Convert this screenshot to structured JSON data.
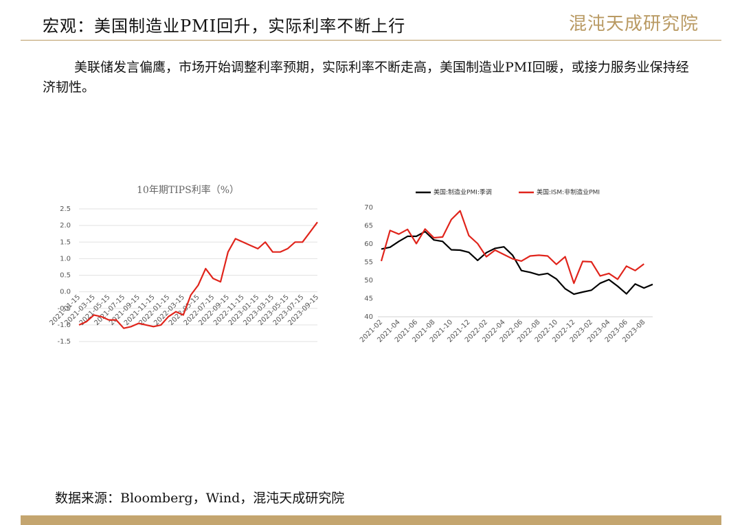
{
  "header": {
    "title": "宏观：美国制造业PMI回升，实际利率不断上行",
    "logo": "混沌天成研究院"
  },
  "body": {
    "paragraph": "美联储发言偏鹰，市场开始调整利率预期，实际利率不断走高，美国制造业PMI回暖，或接力服务业保持经济韧性。"
  },
  "source": "数据来源：Bloomberg，Wind，混沌天成研究院",
  "chart_data": [
    {
      "type": "line",
      "title": "10年期TIPS利率（%）",
      "categories": [
        "2021-01-15",
        null,
        "2021-03-15",
        null,
        "2021-05-15",
        null,
        "2021-07-15",
        null,
        "2021-09-15",
        null,
        "2021-11-15",
        null,
        "2022-01-15",
        null,
        "2022-03-15",
        null,
        "2022-05-15",
        null,
        "2022-07-15",
        null,
        "2022-09-15",
        null,
        "2022-11-15",
        null,
        "2023-01-15",
        null,
        "2023-03-15",
        null,
        "2023-05-15",
        null,
        "2023-07-15",
        null,
        "2023-09-15"
      ],
      "series": [
        {
          "name": "10年期TIPS利率",
          "color": "#e0241b",
          "values": [
            -1.0,
            -0.9,
            -0.7,
            -0.75,
            -0.85,
            -0.85,
            -1.1,
            -1.05,
            -0.95,
            -1.0,
            -1.05,
            -1.0,
            -0.75,
            -0.6,
            -0.7,
            -0.1,
            0.2,
            0.7,
            0.4,
            0.3,
            1.2,
            1.6,
            1.5,
            1.4,
            1.3,
            1.5,
            1.2,
            1.2,
            1.3,
            1.5,
            1.5,
            1.8,
            2.1
          ]
        }
      ],
      "ylim": [
        -1.5,
        2.5
      ],
      "yticks": [
        -1.5,
        {
          "value": -1,
          "label": "-1.0"
        },
        -0.5,
        {
          "value": 0,
          "label": "0.0"
        },
        0.5,
        {
          "value": 1,
          "label": "1.0"
        },
        1.5,
        {
          "value": 2,
          "label": "2.0"
        },
        2.5
      ],
      "grid": true
    },
    {
      "type": "line",
      "categories": [
        "2021-02",
        null,
        "2021-04",
        null,
        "2021-06",
        null,
        "2021-08",
        null,
        "2021-10",
        null,
        "2021-12",
        null,
        "2022-02",
        null,
        "2022-04",
        null,
        "2022-06",
        null,
        "2022-08",
        null,
        "2022-10",
        null,
        "2022-12",
        null,
        "2023-02",
        null,
        "2023-04",
        null,
        "2023-06",
        null,
        "2023-08",
        null
      ],
      "series": [
        {
          "name": "美国:制造业PMI:季调",
          "color": "#000000",
          "values": [
            58.6,
            59.1,
            60.7,
            62.1,
            62.1,
            63.4,
            61.1,
            60.7,
            58.4,
            58.3,
            57.7,
            55.5,
            57.6,
            58.8,
            59.2,
            56.9,
            52.7,
            52.2,
            51.5,
            51.9,
            50.4,
            47.7,
            46.2,
            46.8,
            47.3,
            49.2,
            50.2,
            48.4,
            46.3,
            49.0,
            47.9,
            48.9
          ]
        },
        {
          "name": "美国:ISM:非制造业PMI",
          "color": "#e0241b",
          "values": [
            55.3,
            63.7,
            62.7,
            64.0,
            60.1,
            64.1,
            61.7,
            61.9,
            66.7,
            69.1,
            62.3,
            60.1,
            56.5,
            58.3,
            57.1,
            55.9,
            55.3,
            56.7,
            56.9,
            56.7,
            54.4,
            56.5,
            49.2,
            55.2,
            55.1,
            51.2,
            51.9,
            50.3,
            53.9,
            52.7,
            54.5,
            null
          ]
        }
      ],
      "ylim": [
        40,
        70
      ],
      "yticks": [
        40,
        45,
        50,
        55,
        60,
        65,
        70
      ],
      "grid": false,
      "legend": "top"
    }
  ]
}
